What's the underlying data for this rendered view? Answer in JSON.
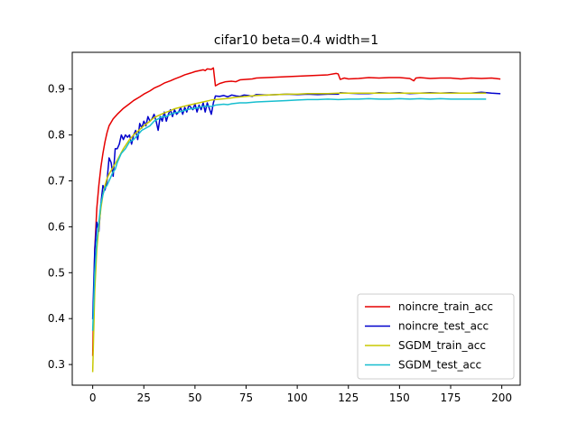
{
  "chart_data": {
    "type": "line",
    "title": "cifar10 beta=0.4 width=1",
    "xlabel": "",
    "ylabel": "",
    "xlim": [
      -10,
      209
    ],
    "ylim": [
      0.255,
      0.98
    ],
    "xticks": [
      0,
      25,
      50,
      75,
      100,
      125,
      150,
      175,
      200
    ],
    "yticks": [
      0.3,
      0.4,
      0.5,
      0.6,
      0.7,
      0.8,
      0.9
    ],
    "xtick_labels": [
      "0",
      "25",
      "50",
      "75",
      "100",
      "125",
      "150",
      "175",
      "200"
    ],
    "ytick_labels": [
      "0.3",
      "0.4",
      "0.5",
      "0.6",
      "0.7",
      "0.8",
      "0.9"
    ],
    "grid": false,
    "legend_position": "lower-right",
    "series": [
      {
        "name": "noincre_train_acc",
        "color": "#e60000",
        "points": [
          [
            0,
            0.32
          ],
          [
            1,
            0.55
          ],
          [
            2,
            0.64
          ],
          [
            3,
            0.69
          ],
          [
            4,
            0.73
          ],
          [
            5,
            0.76
          ],
          [
            6,
            0.785
          ],
          [
            7,
            0.805
          ],
          [
            8,
            0.82
          ],
          [
            10,
            0.835
          ],
          [
            12,
            0.845
          ],
          [
            15,
            0.858
          ],
          [
            18,
            0.868
          ],
          [
            20,
            0.875
          ],
          [
            23,
            0.883
          ],
          [
            25,
            0.889
          ],
          [
            28,
            0.896
          ],
          [
            30,
            0.902
          ],
          [
            33,
            0.908
          ],
          [
            35,
            0.913
          ],
          [
            38,
            0.918
          ],
          [
            40,
            0.922
          ],
          [
            43,
            0.927
          ],
          [
            45,
            0.931
          ],
          [
            48,
            0.935
          ],
          [
            50,
            0.938
          ],
          [
            52,
            0.94
          ],
          [
            54,
            0.942
          ],
          [
            55,
            0.94
          ],
          [
            56,
            0.944
          ],
          [
            58,
            0.943
          ],
          [
            59,
            0.946
          ],
          [
            60,
            0.907
          ],
          [
            62,
            0.912
          ],
          [
            65,
            0.916
          ],
          [
            68,
            0.917
          ],
          [
            70,
            0.916
          ],
          [
            72,
            0.92
          ],
          [
            75,
            0.921
          ],
          [
            78,
            0.922
          ],
          [
            80,
            0.924
          ],
          [
            85,
            0.925
          ],
          [
            90,
            0.926
          ],
          [
            95,
            0.927
          ],
          [
            100,
            0.928
          ],
          [
            105,
            0.929
          ],
          [
            110,
            0.93
          ],
          [
            115,
            0.931
          ],
          [
            119,
            0.934
          ],
          [
            120,
            0.933
          ],
          [
            121,
            0.921
          ],
          [
            123,
            0.924
          ],
          [
            125,
            0.922
          ],
          [
            130,
            0.923
          ],
          [
            135,
            0.925
          ],
          [
            140,
            0.924
          ],
          [
            145,
            0.925
          ],
          [
            150,
            0.925
          ],
          [
            155,
            0.923
          ],
          [
            157,
            0.918
          ],
          [
            158,
            0.924
          ],
          [
            160,
            0.925
          ],
          [
            165,
            0.923
          ],
          [
            170,
            0.924
          ],
          [
            175,
            0.924
          ],
          [
            180,
            0.922
          ],
          [
            185,
            0.924
          ],
          [
            190,
            0.923
          ],
          [
            195,
            0.924
          ],
          [
            199,
            0.922
          ]
        ]
      },
      {
        "name": "noincre_test_acc",
        "color": "#0000cc",
        "points": [
          [
            0,
            0.4
          ],
          [
            1,
            0.55
          ],
          [
            2,
            0.61
          ],
          [
            3,
            0.59
          ],
          [
            4,
            0.65
          ],
          [
            5,
            0.69
          ],
          [
            6,
            0.68
          ],
          [
            7,
            0.7
          ],
          [
            8,
            0.75
          ],
          [
            9,
            0.74
          ],
          [
            10,
            0.71
          ],
          [
            11,
            0.77
          ],
          [
            12,
            0.77
          ],
          [
            13,
            0.78
          ],
          [
            14,
            0.8
          ],
          [
            15,
            0.79
          ],
          [
            16,
            0.8
          ],
          [
            17,
            0.795
          ],
          [
            18,
            0.8
          ],
          [
            19,
            0.78
          ],
          [
            20,
            0.8
          ],
          [
            21,
            0.81
          ],
          [
            22,
            0.79
          ],
          [
            23,
            0.825
          ],
          [
            24,
            0.815
          ],
          [
            25,
            0.83
          ],
          [
            26,
            0.82
          ],
          [
            27,
            0.84
          ],
          [
            28,
            0.83
          ],
          [
            29,
            0.835
          ],
          [
            30,
            0.845
          ],
          [
            31,
            0.83
          ],
          [
            32,
            0.81
          ],
          [
            33,
            0.84
          ],
          [
            34,
            0.83
          ],
          [
            35,
            0.85
          ],
          [
            36,
            0.83
          ],
          [
            37,
            0.845
          ],
          [
            38,
            0.855
          ],
          [
            39,
            0.84
          ],
          [
            40,
            0.855
          ],
          [
            41,
            0.845
          ],
          [
            42,
            0.85
          ],
          [
            43,
            0.86
          ],
          [
            44,
            0.845
          ],
          [
            45,
            0.86
          ],
          [
            46,
            0.85
          ],
          [
            47,
            0.865
          ],
          [
            48,
            0.86
          ],
          [
            49,
            0.855
          ],
          [
            50,
            0.868
          ],
          [
            51,
            0.85
          ],
          [
            52,
            0.865
          ],
          [
            53,
            0.855
          ],
          [
            54,
            0.87
          ],
          [
            55,
            0.85
          ],
          [
            56,
            0.87
          ],
          [
            57,
            0.858
          ],
          [
            58,
            0.845
          ],
          [
            59,
            0.87
          ],
          [
            60,
            0.885
          ],
          [
            62,
            0.884
          ],
          [
            64,
            0.886
          ],
          [
            66,
            0.883
          ],
          [
            68,
            0.887
          ],
          [
            70,
            0.885
          ],
          [
            72,
            0.884
          ],
          [
            74,
            0.887
          ],
          [
            76,
            0.886
          ],
          [
            78,
            0.884
          ],
          [
            80,
            0.888
          ],
          [
            85,
            0.887
          ],
          [
            90,
            0.888
          ],
          [
            95,
            0.889
          ],
          [
            100,
            0.888
          ],
          [
            105,
            0.889
          ],
          [
            110,
            0.888
          ],
          [
            115,
            0.889
          ],
          [
            120,
            0.889
          ],
          [
            121,
            0.892
          ],
          [
            125,
            0.891
          ],
          [
            130,
            0.89
          ],
          [
            135,
            0.89
          ],
          [
            140,
            0.892
          ],
          [
            145,
            0.891
          ],
          [
            150,
            0.892
          ],
          [
            155,
            0.89
          ],
          [
            160,
            0.891
          ],
          [
            165,
            0.892
          ],
          [
            170,
            0.891
          ],
          [
            175,
            0.892
          ],
          [
            180,
            0.891
          ],
          [
            185,
            0.891
          ],
          [
            190,
            0.893
          ],
          [
            195,
            0.891
          ],
          [
            199,
            0.89
          ]
        ]
      },
      {
        "name": "SGDM_train_acc",
        "color": "#c8c800",
        "points": [
          [
            0,
            0.285
          ],
          [
            1,
            0.46
          ],
          [
            2,
            0.55
          ],
          [
            3,
            0.6
          ],
          [
            4,
            0.64
          ],
          [
            5,
            0.67
          ],
          [
            6,
            0.69
          ],
          [
            7,
            0.705
          ],
          [
            8,
            0.715
          ],
          [
            10,
            0.73
          ],
          [
            12,
            0.745
          ],
          [
            15,
            0.77
          ],
          [
            18,
            0.79
          ],
          [
            20,
            0.8
          ],
          [
            23,
            0.812
          ],
          [
            25,
            0.82
          ],
          [
            28,
            0.83
          ],
          [
            30,
            0.838
          ],
          [
            33,
            0.844
          ],
          [
            35,
            0.848
          ],
          [
            38,
            0.853
          ],
          [
            40,
            0.857
          ],
          [
            45,
            0.863
          ],
          [
            50,
            0.868
          ],
          [
            55,
            0.873
          ],
          [
            58,
            0.876
          ],
          [
            60,
            0.877
          ],
          [
            65,
            0.879
          ],
          [
            70,
            0.882
          ],
          [
            75,
            0.884
          ],
          [
            80,
            0.886
          ],
          [
            85,
            0.887
          ],
          [
            90,
            0.888
          ],
          [
            95,
            0.889
          ],
          [
            100,
            0.889
          ],
          [
            105,
            0.89
          ],
          [
            110,
            0.89
          ],
          [
            115,
            0.89
          ],
          [
            120,
            0.891
          ],
          [
            125,
            0.891
          ],
          [
            130,
            0.891
          ],
          [
            135,
            0.891
          ],
          [
            140,
            0.891
          ],
          [
            145,
            0.891
          ],
          [
            150,
            0.891
          ],
          [
            155,
            0.891
          ],
          [
            160,
            0.891
          ],
          [
            165,
            0.891
          ],
          [
            170,
            0.891
          ],
          [
            175,
            0.891
          ],
          [
            180,
            0.891
          ],
          [
            185,
            0.891
          ],
          [
            190,
            0.891
          ],
          [
            192,
            0.891
          ]
        ]
      },
      {
        "name": "SGDM_test_acc",
        "color": "#17becf",
        "points": [
          [
            0,
            0.375
          ],
          [
            1,
            0.5
          ],
          [
            2,
            0.57
          ],
          [
            3,
            0.61
          ],
          [
            4,
            0.65
          ],
          [
            5,
            0.67
          ],
          [
            6,
            0.685
          ],
          [
            7,
            0.69
          ],
          [
            8,
            0.7
          ],
          [
            10,
            0.72
          ],
          [
            11,
            0.725
          ],
          [
            12,
            0.74
          ],
          [
            14,
            0.76
          ],
          [
            16,
            0.77
          ],
          [
            18,
            0.785
          ],
          [
            20,
            0.79
          ],
          [
            22,
            0.8
          ],
          [
            24,
            0.81
          ],
          [
            26,
            0.815
          ],
          [
            28,
            0.82
          ],
          [
            30,
            0.83
          ],
          [
            32,
            0.835
          ],
          [
            34,
            0.84
          ],
          [
            36,
            0.84
          ],
          [
            38,
            0.845
          ],
          [
            40,
            0.848
          ],
          [
            42,
            0.85
          ],
          [
            44,
            0.852
          ],
          [
            46,
            0.855
          ],
          [
            48,
            0.857
          ],
          [
            50,
            0.858
          ],
          [
            52,
            0.86
          ],
          [
            54,
            0.862
          ],
          [
            56,
            0.863
          ],
          [
            58,
            0.862
          ],
          [
            60,
            0.865
          ],
          [
            62,
            0.866
          ],
          [
            64,
            0.867
          ],
          [
            66,
            0.866
          ],
          [
            68,
            0.868
          ],
          [
            70,
            0.869
          ],
          [
            72,
            0.87
          ],
          [
            75,
            0.87
          ],
          [
            80,
            0.872
          ],
          [
            85,
            0.873
          ],
          [
            90,
            0.874
          ],
          [
            95,
            0.875
          ],
          [
            100,
            0.876
          ],
          [
            105,
            0.877
          ],
          [
            110,
            0.877
          ],
          [
            115,
            0.878
          ],
          [
            120,
            0.877
          ],
          [
            125,
            0.878
          ],
          [
            130,
            0.878
          ],
          [
            135,
            0.879
          ],
          [
            140,
            0.878
          ],
          [
            145,
            0.878
          ],
          [
            150,
            0.879
          ],
          [
            155,
            0.878
          ],
          [
            160,
            0.879
          ],
          [
            165,
            0.878
          ],
          [
            170,
            0.879
          ],
          [
            175,
            0.878
          ],
          [
            180,
            0.878
          ],
          [
            185,
            0.878
          ],
          [
            190,
            0.878
          ],
          [
            192,
            0.878
          ]
        ]
      }
    ]
  }
}
